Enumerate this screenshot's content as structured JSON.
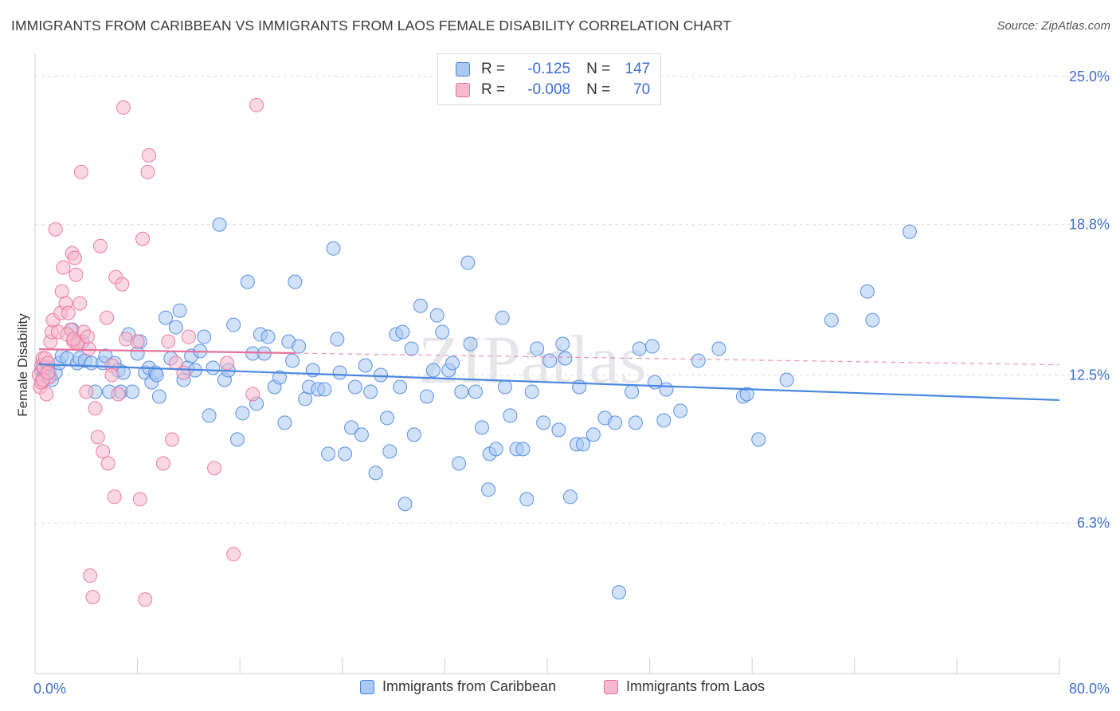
{
  "title": "IMMIGRANTS FROM CARIBBEAN VS IMMIGRANTS FROM LAOS FEMALE DISABILITY CORRELATION CHART",
  "source": "Source: ZipAtlas.com",
  "watermark": "ZIPatlas",
  "colors": {
    "blue": "#4a86e0",
    "blue_fill": "#a9c8f2",
    "pink": "#e8709a",
    "pink_fill": "#f5b8cc",
    "axis_text": "#3a6fd0",
    "grid": "#dddddd"
  },
  "legend": {
    "rows": [
      {
        "r_label": "R =",
        "r_value": "-0.125",
        "n_label": "N =",
        "n_value": "147"
      },
      {
        "r_label": "R =",
        "r_value": "-0.008",
        "n_label": "N =",
        "n_value": "70"
      }
    ]
  },
  "bottom_legend": [
    "Immigrants from Caribbean",
    "Immigrants from Laos"
  ],
  "chart_data": {
    "type": "scatter",
    "title": "IMMIGRANTS FROM CARIBBEAN VS IMMIGRANTS FROM LAOS FEMALE DISABILITY CORRELATION CHART",
    "xlabel": "",
    "ylabel": "Female Disability",
    "xlim": [
      0,
      80
    ],
    "ylim": [
      0,
      25.6
    ],
    "x_tick_labels": [
      "0.0%",
      "80.0%"
    ],
    "y_ticks": [
      6.3,
      12.5,
      18.8,
      25.0
    ],
    "y_tick_labels": [
      "6.3%",
      "12.5%",
      "18.8%",
      "25.0%"
    ],
    "grid": true,
    "legend_position": "top-center",
    "series": [
      {
        "name": "Immigrants from Caribbean",
        "color": "#4a86e0",
        "trend": {
          "x": [
            0.3,
            80.0
          ],
          "y": [
            12.95,
            11.45
          ]
        },
        "points": [
          [
            0.5,
            12.7
          ],
          [
            0.6,
            12.9
          ],
          [
            0.7,
            12.5
          ],
          [
            0.8,
            12.6
          ],
          [
            0.9,
            12.4
          ],
          [
            1.0,
            12.8
          ],
          [
            1.1,
            12.6
          ],
          [
            1.3,
            12.3
          ],
          [
            1.6,
            12.6
          ],
          [
            1.9,
            13.0
          ],
          [
            2.1,
            13.3
          ],
          [
            2.5,
            13.2
          ],
          [
            2.9,
            14.4
          ],
          [
            3.3,
            13.0
          ],
          [
            3.5,
            13.2
          ],
          [
            3.7,
            13.9
          ],
          [
            3.9,
            13.1
          ],
          [
            4.4,
            13.0
          ],
          [
            4.7,
            11.8
          ],
          [
            5.3,
            13.0
          ],
          [
            5.5,
            13.3
          ],
          [
            5.8,
            11.8
          ],
          [
            6.2,
            13.0
          ],
          [
            6.5,
            12.7
          ],
          [
            6.7,
            11.8
          ],
          [
            6.9,
            12.6
          ],
          [
            7.3,
            14.2
          ],
          [
            7.6,
            11.8
          ],
          [
            8.0,
            13.4
          ],
          [
            8.2,
            13.9
          ],
          [
            8.6,
            12.6
          ],
          [
            8.9,
            12.8
          ],
          [
            9.1,
            12.2
          ],
          [
            9.4,
            12.6
          ],
          [
            9.5,
            12.5
          ],
          [
            9.7,
            11.6
          ],
          [
            10.2,
            14.9
          ],
          [
            10.6,
            13.2
          ],
          [
            11.0,
            14.5
          ],
          [
            11.3,
            15.2
          ],
          [
            11.6,
            12.3
          ],
          [
            11.9,
            12.8
          ],
          [
            12.2,
            13.3
          ],
          [
            12.5,
            12.7
          ],
          [
            12.9,
            13.5
          ],
          [
            13.2,
            14.1
          ],
          [
            13.6,
            10.8
          ],
          [
            13.9,
            12.8
          ],
          [
            14.4,
            18.8
          ],
          [
            14.8,
            12.3
          ],
          [
            15.1,
            12.7
          ],
          [
            15.5,
            14.6
          ],
          [
            15.8,
            9.8
          ],
          [
            16.2,
            10.9
          ],
          [
            16.6,
            16.4
          ],
          [
            17.0,
            13.4
          ],
          [
            17.3,
            11.3
          ],
          [
            17.6,
            14.2
          ],
          [
            17.9,
            13.4
          ],
          [
            18.2,
            14.1
          ],
          [
            18.7,
            12.0
          ],
          [
            19.1,
            12.4
          ],
          [
            19.5,
            10.5
          ],
          [
            19.8,
            13.9
          ],
          [
            20.1,
            13.1
          ],
          [
            20.3,
            16.4
          ],
          [
            20.6,
            13.7
          ],
          [
            21.1,
            11.5
          ],
          [
            21.4,
            12.0
          ],
          [
            21.7,
            12.7
          ],
          [
            22.1,
            11.9
          ],
          [
            22.6,
            11.9
          ],
          [
            22.9,
            9.2
          ],
          [
            23.3,
            17.8
          ],
          [
            23.6,
            14.0
          ],
          [
            23.8,
            12.6
          ],
          [
            24.2,
            9.2
          ],
          [
            24.7,
            10.3
          ],
          [
            25.0,
            12.0
          ],
          [
            25.5,
            10.0
          ],
          [
            25.8,
            12.9
          ],
          [
            26.2,
            11.8
          ],
          [
            26.6,
            8.4
          ],
          [
            27.0,
            12.5
          ],
          [
            27.5,
            10.7
          ],
          [
            27.7,
            9.3
          ],
          [
            28.2,
            14.2
          ],
          [
            28.5,
            12.0
          ],
          [
            28.7,
            14.3
          ],
          [
            28.9,
            7.1
          ],
          [
            29.4,
            13.6
          ],
          [
            29.6,
            10.0
          ],
          [
            30.1,
            15.4
          ],
          [
            30.6,
            11.6
          ],
          [
            31.1,
            12.7
          ],
          [
            31.4,
            15.0
          ],
          [
            31.8,
            14.3
          ],
          [
            32.3,
            12.7
          ],
          [
            32.6,
            13.0
          ],
          [
            33.1,
            8.8
          ],
          [
            33.3,
            11.8
          ],
          [
            33.8,
            17.2
          ],
          [
            34.0,
            13.8
          ],
          [
            34.4,
            11.8
          ],
          [
            34.9,
            10.3
          ],
          [
            35.4,
            7.7
          ],
          [
            35.5,
            9.2
          ],
          [
            36.0,
            9.4
          ],
          [
            36.5,
            14.9
          ],
          [
            36.7,
            12.0
          ],
          [
            37.1,
            10.8
          ],
          [
            37.6,
            9.4
          ],
          [
            38.1,
            9.4
          ],
          [
            38.4,
            7.3
          ],
          [
            38.8,
            11.8
          ],
          [
            39.2,
            13.6
          ],
          [
            39.7,
            10.5
          ],
          [
            40.2,
            13.1
          ],
          [
            40.9,
            10.2
          ],
          [
            41.2,
            13.8
          ],
          [
            41.4,
            13.2
          ],
          [
            41.8,
            7.4
          ],
          [
            42.3,
            9.6
          ],
          [
            42.5,
            12.0
          ],
          [
            42.8,
            9.6
          ],
          [
            43.6,
            10.0
          ],
          [
            44.5,
            10.7
          ],
          [
            45.3,
            10.5
          ],
          [
            45.6,
            3.4
          ],
          [
            46.6,
            11.8
          ],
          [
            46.9,
            10.5
          ],
          [
            47.2,
            13.6
          ],
          [
            48.2,
            13.7
          ],
          [
            48.4,
            12.2
          ],
          [
            49.1,
            10.6
          ],
          [
            49.3,
            11.9
          ],
          [
            50.4,
            11.0
          ],
          [
            51.8,
            13.1
          ],
          [
            53.4,
            13.6
          ],
          [
            55.3,
            11.6
          ],
          [
            55.6,
            11.7
          ],
          [
            56.5,
            9.8
          ],
          [
            58.7,
            12.3
          ],
          [
            62.2,
            14.8
          ],
          [
            65.0,
            16.0
          ],
          [
            65.4,
            14.8
          ],
          [
            68.3,
            18.5
          ]
        ]
      },
      {
        "name": "Immigrants from Laos",
        "color": "#e8709a",
        "trend": {
          "x": [
            0.3,
            80.0
          ],
          "y": [
            13.58,
            12.93
          ]
        },
        "trend_solid_until": 20.3,
        "points": [
          [
            0.3,
            12.5
          ],
          [
            0.4,
            12.0
          ],
          [
            0.5,
            12.2
          ],
          [
            0.5,
            12.9
          ],
          [
            0.6,
            13.2
          ],
          [
            0.7,
            12.8
          ],
          [
            0.8,
            13.2
          ],
          [
            0.9,
            11.7
          ],
          [
            1.0,
            13.0
          ],
          [
            1.1,
            12.4
          ],
          [
            1.2,
            13.9
          ],
          [
            1.3,
            14.3
          ],
          [
            1.4,
            14.8
          ],
          [
            1.6,
            18.6
          ],
          [
            1.8,
            14.3
          ],
          [
            2.0,
            15.1
          ],
          [
            2.1,
            16.0
          ],
          [
            2.2,
            17.0
          ],
          [
            2.4,
            15.5
          ],
          [
            2.6,
            15.1
          ],
          [
            2.8,
            14.4
          ],
          [
            2.9,
            17.6
          ],
          [
            3.0,
            13.9
          ],
          [
            3.1,
            17.4
          ],
          [
            3.2,
            16.7
          ],
          [
            3.4,
            13.9
          ],
          [
            3.5,
            15.5
          ],
          [
            3.6,
            21.0
          ],
          [
            3.8,
            14.3
          ],
          [
            4.0,
            11.8
          ],
          [
            4.2,
            13.6
          ],
          [
            4.3,
            4.1
          ],
          [
            4.5,
            3.2
          ],
          [
            4.7,
            11.1
          ],
          [
            4.9,
            9.9
          ],
          [
            5.1,
            17.9
          ],
          [
            5.3,
            9.3
          ],
          [
            5.6,
            14.9
          ],
          [
            5.7,
            8.8
          ],
          [
            6.0,
            12.9
          ],
          [
            6.2,
            7.4
          ],
          [
            6.3,
            16.6
          ],
          [
            6.5,
            11.7
          ],
          [
            6.8,
            16.3
          ],
          [
            6.9,
            23.7
          ],
          [
            7.1,
            14.0
          ],
          [
            8.0,
            13.9
          ],
          [
            8.2,
            7.3
          ],
          [
            8.4,
            18.2
          ],
          [
            8.6,
            3.1
          ],
          [
            8.8,
            21.0
          ],
          [
            8.9,
            21.7
          ],
          [
            10.0,
            8.8
          ],
          [
            10.4,
            13.9
          ],
          [
            10.7,
            9.8
          ],
          [
            11.0,
            13.0
          ],
          [
            11.6,
            12.6
          ],
          [
            12.0,
            14.1
          ],
          [
            14.0,
            8.6
          ],
          [
            15.0,
            13.0
          ],
          [
            15.5,
            5.0
          ],
          [
            17.0,
            11.7
          ],
          [
            17.3,
            23.8
          ],
          [
            0.6,
            12.3
          ],
          [
            1.0,
            12.6
          ],
          [
            2.5,
            14.2
          ],
          [
            3.3,
            13.8
          ],
          [
            4.1,
            14.1
          ],
          [
            6.0,
            12.5
          ],
          [
            3.0,
            14.0
          ]
        ]
      }
    ]
  }
}
